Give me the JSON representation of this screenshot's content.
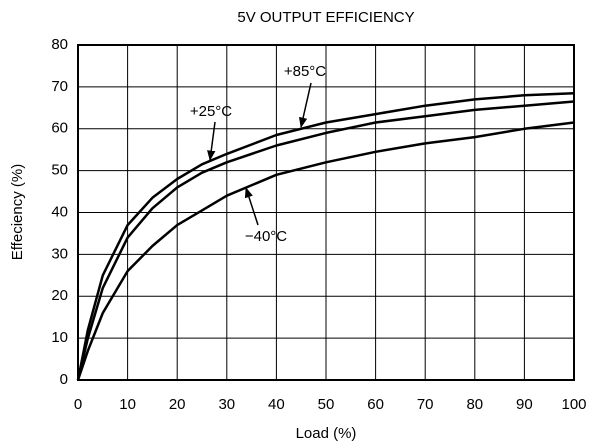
{
  "chart_data": {
    "type": "line",
    "title": "5V OUTPUT EFFICIENCY",
    "x_label": "Load (%)",
    "y_label": "Effeciency (%)",
    "x": [
      0,
      2,
      5,
      10,
      15,
      20,
      25,
      30,
      40,
      50,
      60,
      70,
      80,
      90,
      100
    ],
    "series": [
      {
        "name": "+85°C",
        "color": "#000000",
        "values": [
          0,
          12,
          25,
          37,
          43.5,
          48,
          51.5,
          54,
          58.5,
          61.5,
          63.5,
          65.5,
          67,
          68,
          68.5
        ]
      },
      {
        "name": "+25°C",
        "color": "#000000",
        "values": [
          0,
          10,
          22,
          34,
          41,
          46,
          49.5,
          52,
          56,
          59,
          61.5,
          63,
          64.5,
          65.5,
          66.5
        ]
      },
      {
        "name": "−40°C",
        "color": "#000000",
        "values": [
          0,
          7,
          16,
          26,
          32,
          37,
          40.5,
          44,
          49,
          52,
          54.5,
          56.5,
          58,
          60,
          61.5
        ]
      }
    ],
    "xlim": [
      0,
      100
    ],
    "xticks": [
      0,
      10,
      20,
      30,
      40,
      50,
      60,
      70,
      80,
      90,
      100
    ],
    "ylim": [
      0,
      80
    ],
    "yticks": [
      0,
      10,
      20,
      30,
      40,
      50,
      60,
      70,
      80
    ],
    "grid": true
  }
}
